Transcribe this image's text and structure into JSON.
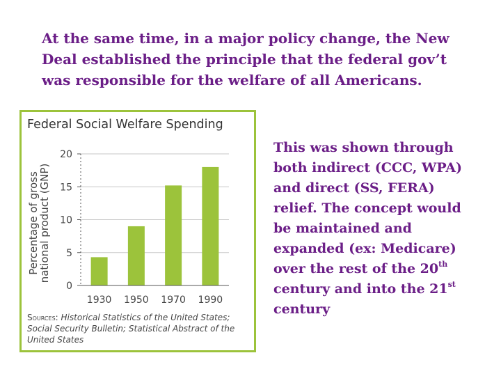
{
  "slide": {
    "headline": "At the same time, in a major policy change, the New Deal established the principle that the federal gov’t was responsible for the welfare of all Americans.",
    "body": {
      "part1": "This was shown through both indirect (CCC, WPA) and direct (SS, FERA) relief. The concept would be maintained and expanded (ex: Medicare) over the rest of the 20",
      "sup1": "th",
      "part2": " century and into the 21",
      "sup2": "st",
      "part3": " century"
    }
  },
  "chart_data": {
    "type": "bar",
    "title": "Federal Social Welfare Spending",
    "ylabel_line1": "Percentage of gross",
    "ylabel_line2": "national product (GNP)",
    "xlabel": "",
    "categories": [
      "1930",
      "1950",
      "1970",
      "1990"
    ],
    "values": [
      4.3,
      9,
      15.2,
      18
    ],
    "ylim": [
      0,
      20
    ],
    "yticks": [
      0,
      5,
      10,
      15,
      20
    ],
    "grid": true,
    "sources_label": "Sources:",
    "sources_text": "Historical Statistics of the United States; Social Security Bulletin; Statistical Abstract of the United States",
    "colors": {
      "bar": "#9cc33b",
      "frame": "#9cc33b",
      "grid": "#c7c7c7",
      "text": "#444444"
    }
  }
}
